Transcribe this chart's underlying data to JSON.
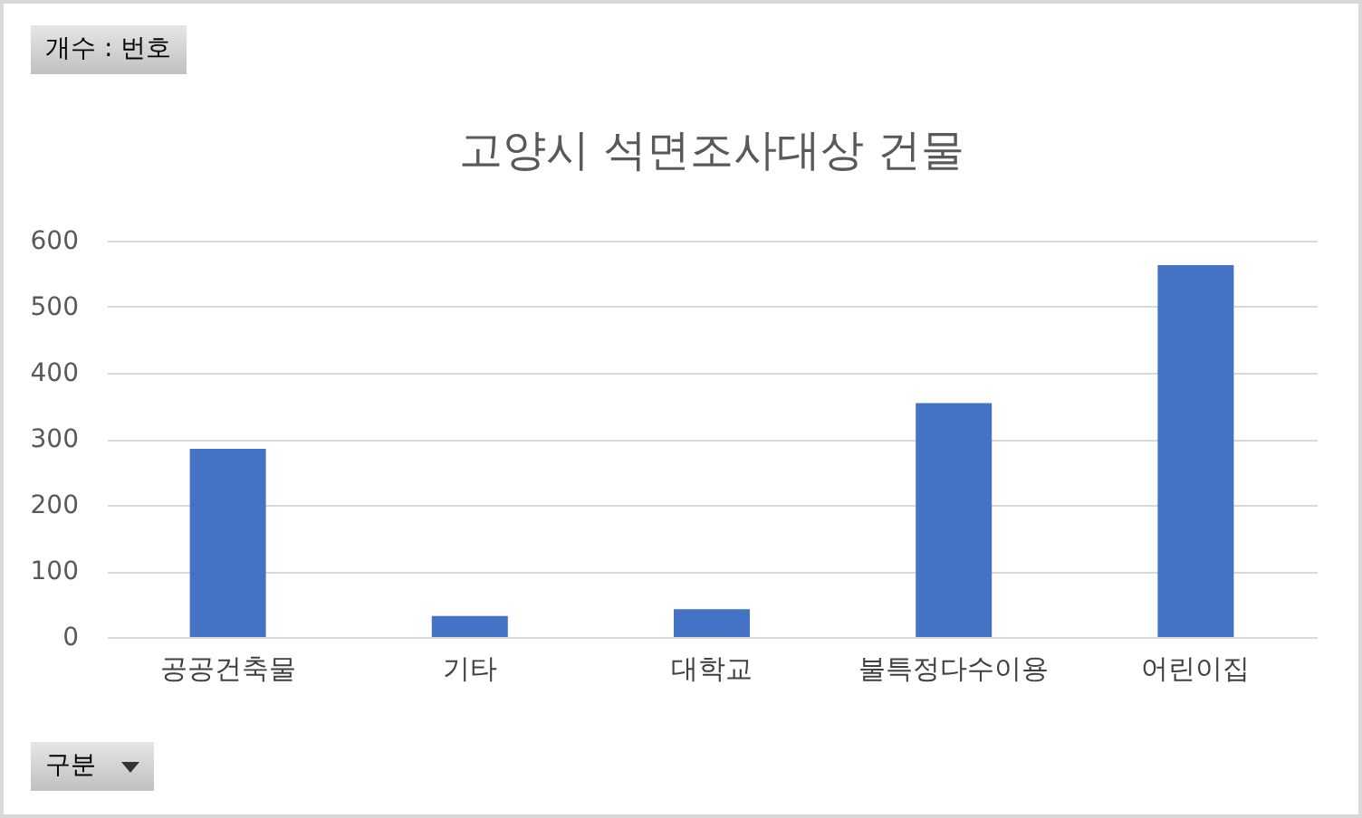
{
  "chart_data": {
    "type": "bar",
    "title": "고양시 석면조사대상 건물",
    "categories": [
      "공공건축물",
      "기타",
      "대학교",
      "불특정다수이용",
      "어린이집"
    ],
    "values": [
      285,
      32,
      42,
      354,
      563
    ],
    "color": "#4472c4",
    "ylim": [
      0,
      600
    ],
    "yticks": [
      0,
      100,
      200,
      300,
      400,
      500,
      600
    ],
    "grid": "y",
    "annotations": [
      "개수 : 번호",
      "구분"
    ]
  }
}
